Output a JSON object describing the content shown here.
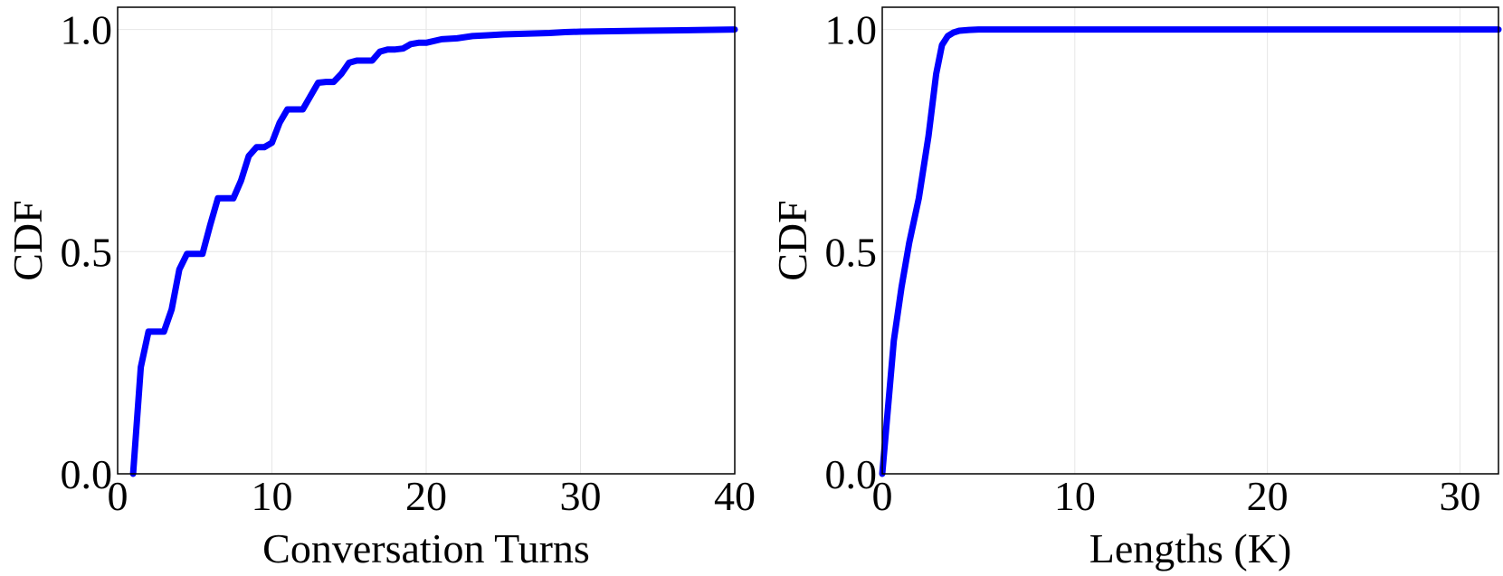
{
  "colors": {
    "line": "#0000ff",
    "grid": "#e6e6e6",
    "axes": "#000000"
  },
  "chart_data": [
    {
      "type": "line",
      "title": "",
      "xlabel": "Conversation Turns",
      "ylabel": "CDF",
      "xlim": [
        0,
        40
      ],
      "ylim": [
        0,
        1.05
      ],
      "xticks": [
        0,
        10,
        20,
        30,
        40
      ],
      "xtick_labels": [
        "0",
        "10",
        "20",
        "30",
        "40"
      ],
      "yticks": [
        0,
        0.5,
        1.0
      ],
      "ytick_labels": [
        "0.0",
        "0.5",
        "1.0"
      ],
      "grid": true,
      "legend": "none",
      "series": [
        {
          "color": "#0000ff",
          "x": [
            1,
            1.5,
            2,
            2.5,
            3,
            3.5,
            4,
            4.5,
            5,
            5.5,
            6,
            6.5,
            7,
            7.5,
            8,
            8.5,
            9,
            9.5,
            10,
            10.5,
            11,
            11.5,
            12,
            12.5,
            13,
            13.5,
            14,
            14.5,
            15,
            15.5,
            16,
            16.5,
            17,
            17.5,
            18,
            18.5,
            19,
            19.5,
            20,
            21,
            22,
            23,
            24,
            25,
            26,
            27,
            28,
            29,
            30,
            32,
            34,
            36,
            38,
            40
          ],
          "y": [
            0.0,
            0.24,
            0.32,
            0.32,
            0.32,
            0.37,
            0.46,
            0.495,
            0.495,
            0.495,
            0.56,
            0.62,
            0.62,
            0.62,
            0.66,
            0.715,
            0.735,
            0.735,
            0.745,
            0.79,
            0.82,
            0.82,
            0.82,
            0.85,
            0.88,
            0.882,
            0.882,
            0.9,
            0.925,
            0.93,
            0.93,
            0.93,
            0.95,
            0.955,
            0.955,
            0.957,
            0.967,
            0.97,
            0.97,
            0.978,
            0.98,
            0.985,
            0.987,
            0.989,
            0.99,
            0.991,
            0.992,
            0.994,
            0.995,
            0.996,
            0.997,
            0.998,
            0.999,
            1.0
          ]
        }
      ]
    },
    {
      "type": "line",
      "title": "",
      "xlabel": "Lengths (K)",
      "ylabel": "CDF",
      "xlim": [
        0,
        32
      ],
      "ylim": [
        0,
        1.05
      ],
      "xticks": [
        0,
        10,
        20,
        30
      ],
      "xtick_labels": [
        "0",
        "10",
        "20",
        "30"
      ],
      "yticks": [
        0,
        0.5,
        1.0
      ],
      "ytick_labels": [
        "0.0",
        "0.5",
        "1.0"
      ],
      "grid": true,
      "legend": "none",
      "series": [
        {
          "color": "#0000ff",
          "x": [
            0,
            0.3,
            0.6,
            1.0,
            1.4,
            1.9,
            2.4,
            2.8,
            3.1,
            3.4,
            3.7,
            4.0,
            4.5,
            5,
            6,
            8,
            10,
            15,
            20,
            25,
            30,
            32
          ],
          "y": [
            0.0,
            0.15,
            0.3,
            0.42,
            0.52,
            0.62,
            0.76,
            0.9,
            0.965,
            0.985,
            0.993,
            0.997,
            0.999,
            1.0,
            1.0,
            1.0,
            1.0,
            1.0,
            1.0,
            1.0,
            1.0,
            1.0
          ]
        }
      ]
    }
  ]
}
